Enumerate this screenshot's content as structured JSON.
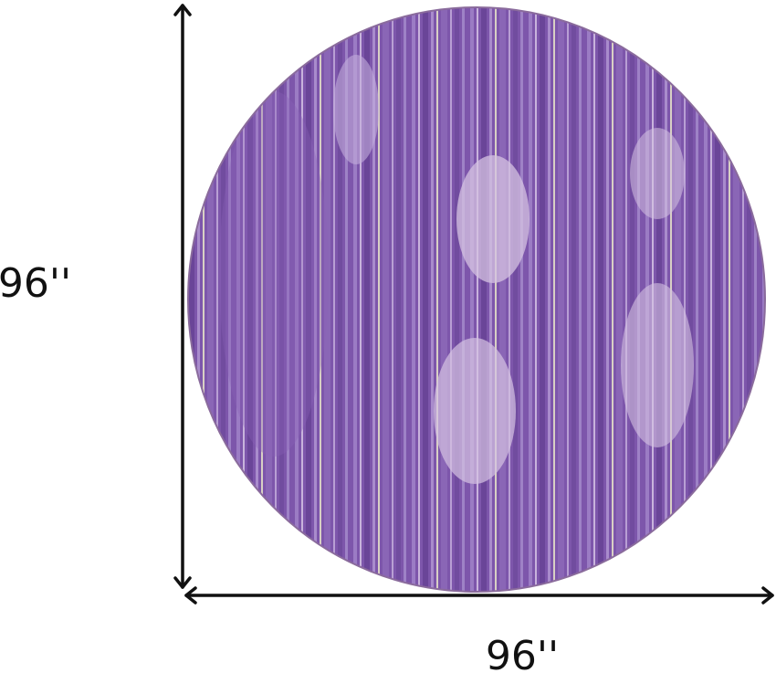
{
  "dimensions": {
    "height": "96''",
    "width": "96''"
  }
}
